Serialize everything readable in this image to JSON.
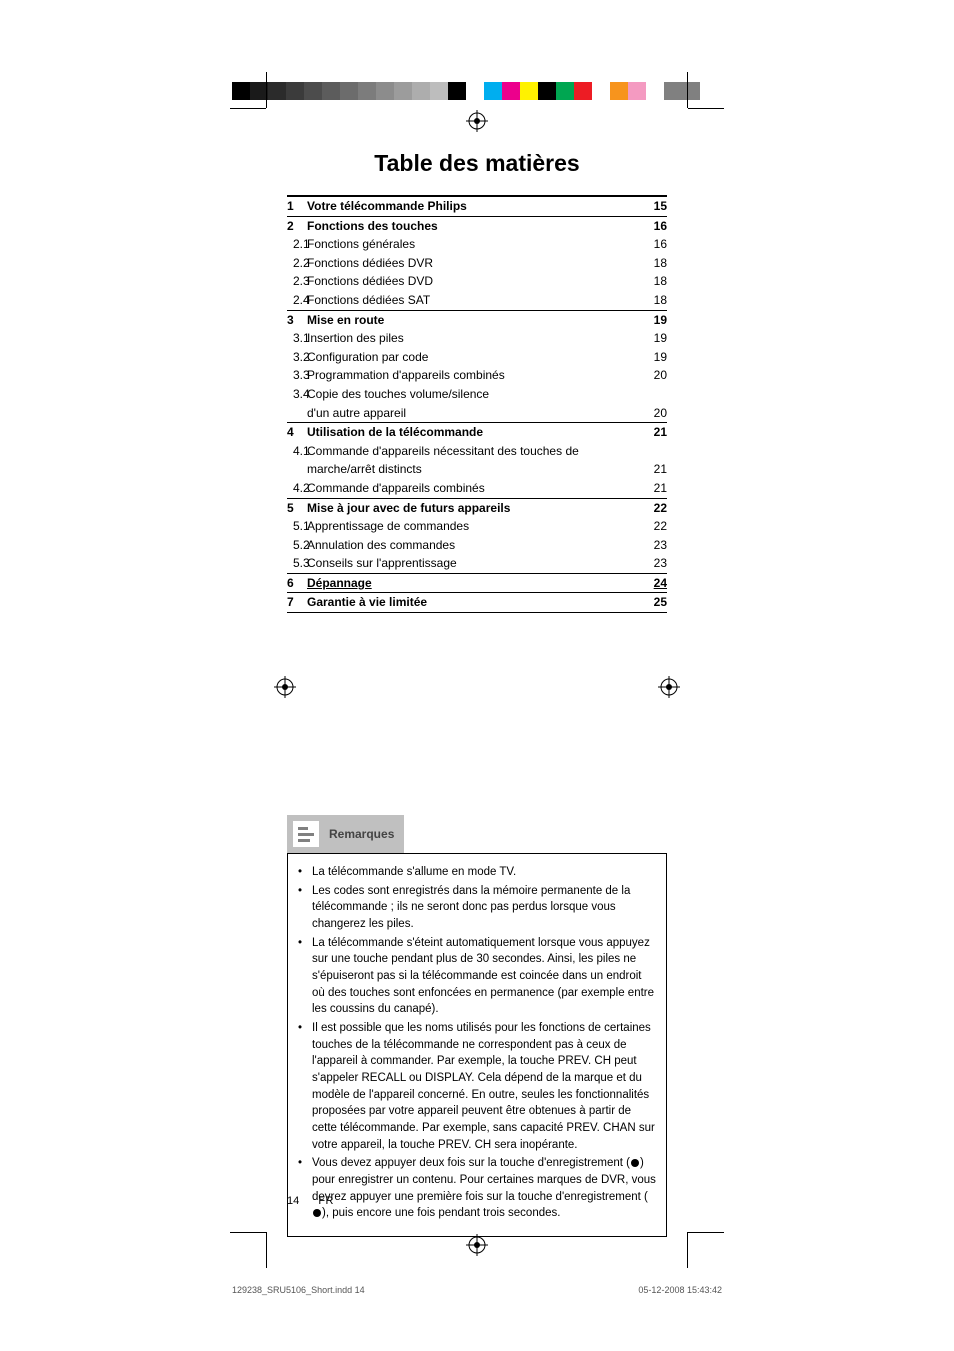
{
  "colorbar": [
    "#000000",
    "#1a1a1a",
    "#2b2b2b",
    "#3b3b3b",
    "#4c4c4c",
    "#5c5c5c",
    "#6c6c6c",
    "#7c7c7c",
    "#8c8c8c",
    "#9c9c9c",
    "#adadad",
    "#bdbdbd",
    "#000000",
    "#ffffff",
    "#00aeef",
    "#ec008c",
    "#fff200",
    "#000000",
    "#00a651",
    "#ed1c24",
    "#ffffff",
    "#f7941d",
    "#f49ac1",
    "#ffffff",
    "#808080",
    "#808080"
  ],
  "title": "Table des matières",
  "toc": [
    {
      "type": "rule"
    },
    {
      "num": "1",
      "label": "Votre télécommande Philips",
      "page": "15",
      "bold": true
    },
    {
      "type": "rule"
    },
    {
      "num": "2",
      "label": "Fonctions des touches",
      "page": "16",
      "bold": true
    },
    {
      "sub": "2.1",
      "label": "Fonctions générales",
      "page": "16"
    },
    {
      "sub": "2.2",
      "label": "Fonctions dédiées DVR",
      "page": "18"
    },
    {
      "sub": "2.3",
      "label": "Fonctions dédiées DVD",
      "page": "18"
    },
    {
      "sub": "2.4",
      "label": "Fonctions dédiées SAT",
      "page": "18"
    },
    {
      "type": "rule"
    },
    {
      "num": "3",
      "label": "Mise en route",
      "page": "19",
      "bold": true
    },
    {
      "sub": "3.1",
      "label": "Insertion des piles",
      "page": "19"
    },
    {
      "sub": "3.2",
      "label": "Configuration par code",
      "page": "19"
    },
    {
      "sub": "3.3",
      "label": "Programmation d'appareils combinés",
      "page": "20"
    },
    {
      "sub": "3.4",
      "label": "Copie des touches volume/silence",
      "page": ""
    },
    {
      "sub": "",
      "label": "d'un autre appareil",
      "page": "20"
    },
    {
      "type": "rule"
    },
    {
      "num": "4",
      "label": "Utilisation de la télécommande",
      "page": "21",
      "bold": true
    },
    {
      "sub": "4.1",
      "label": "Commande d'appareils nécessitant des touches de",
      "page": ""
    },
    {
      "sub": "",
      "label": "marche/arrêt distincts",
      "page": "21"
    },
    {
      "sub": "4.2",
      "label": "Commande d'appareils combinés",
      "page": "21"
    },
    {
      "type": "rule"
    },
    {
      "num": "5",
      "label": "Mise à jour avec de futurs appareils",
      "page": "22",
      "bold": true
    },
    {
      "sub": "5.1",
      "label": "Apprentissage de commandes",
      "page": "22"
    },
    {
      "sub": "5.2",
      "label": "Annulation des commandes",
      "page": "23"
    },
    {
      "sub": "5.3",
      "label": "Conseils sur l'apprentissage",
      "page": "23"
    },
    {
      "type": "rule"
    },
    {
      "num": "6",
      "label": "Dépannage",
      "page": "24",
      "bold": true,
      "underline": true
    },
    {
      "type": "rule"
    },
    {
      "num": "7",
      "label": "Garantie à vie limitée",
      "page": "25",
      "bold": true
    },
    {
      "type": "rule"
    }
  ],
  "remarques": {
    "heading": "Remarques",
    "items": [
      "La télécommande s'allume en mode TV.",
      "Les codes sont enregistrés dans la mémoire permanente de la télécommande ; ils ne seront donc pas perdus lorsque vous changerez les piles.",
      "La télécommande s'éteint automatiquement lorsque vous appuyez sur une touche pendant plus de 30 secondes. Ainsi, les piles ne s'épuiseront pas si la télécommande est coincée dans un endroit où des touches sont enfoncées en permanence (par exemple entre les coussins du canapé).",
      "Il est possible que les noms utilisés pour les fonctions de certaines touches de la télécommande ne correspondent pas à ceux de l'appareil à commander. Par exemple, la touche PREV. CH peut s'appeler RECALL ou DISPLAY. Cela dépend de la marque et du modèle de l'appareil concerné.  En outre, seules les fonctionnalités proposées par votre appareil peuvent être obtenues à partir de cette télécommande. Par exemple, sans capacité PREV. CHAN sur votre appareil, la touche PREV. CH sera inopérante.",
      "Vous devez appuyer deux fois sur la touche d'enregistrement (●) pour enregistrer un contenu. Pour certaines marques de DVR, vous devrez appuyer une première fois sur la touche d'enregistrement (●), puis encore une fois pendant trois secondes."
    ]
  },
  "footer": {
    "page_num": "14",
    "lang": "FR"
  },
  "imprint": {
    "file": "129238_SRU5106_Short.indd   14",
    "date": "05-12-2008   15:43:42"
  }
}
